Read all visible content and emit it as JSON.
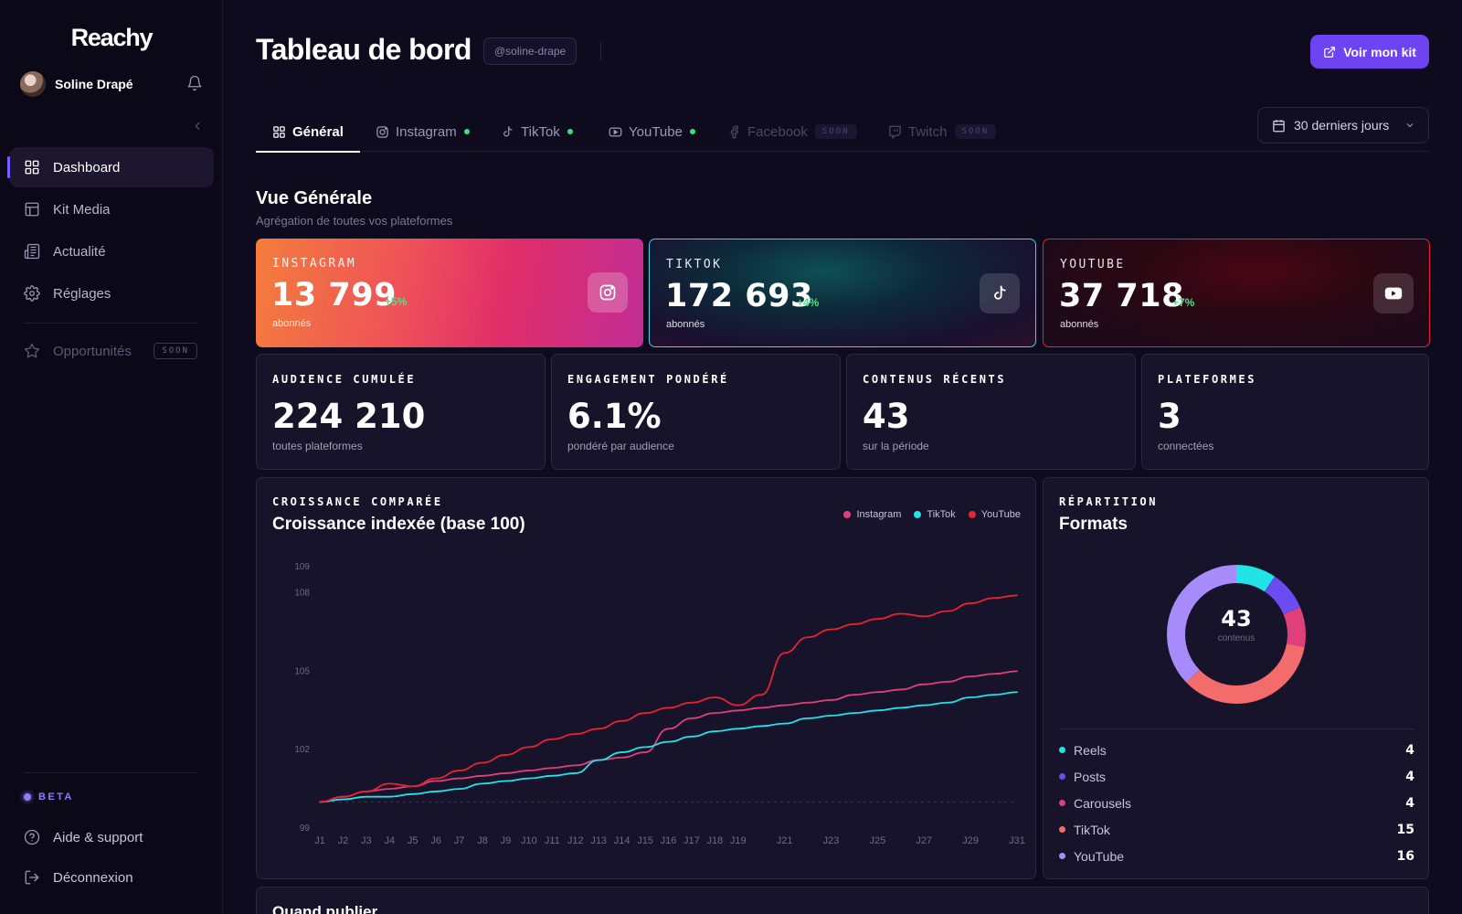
{
  "app": {
    "logo": "Reachy"
  },
  "user": {
    "name": "Soline Drapé",
    "handle": "@soline-drape"
  },
  "sidebar": {
    "items": [
      {
        "label": "Dashboard",
        "icon": "grid-icon",
        "active": true
      },
      {
        "label": "Kit Media",
        "icon": "layout-icon"
      },
      {
        "label": "Actualité",
        "icon": "newspaper-icon"
      },
      {
        "label": "Réglages",
        "icon": "gear-icon"
      }
    ],
    "opportunities": {
      "label": "Opportunités",
      "badge": "SOON"
    },
    "beta_label": "BETA",
    "help": "Aide & support",
    "logout": "Déconnexion"
  },
  "header": {
    "title": "Tableau de bord",
    "kit_button": "Voir mon kit"
  },
  "tabs": [
    {
      "label": "Général",
      "icon": "grid-icon",
      "active": true
    },
    {
      "label": "Instagram",
      "icon": "instagram-icon",
      "status": "connected"
    },
    {
      "label": "TikTok",
      "icon": "tiktok-icon",
      "status": "connected"
    },
    {
      "label": "YouTube",
      "icon": "youtube-icon",
      "status": "connected"
    },
    {
      "label": "Facebook",
      "icon": "facebook-icon",
      "badge": "SOON"
    },
    {
      "label": "Twitch",
      "icon": "twitch-icon",
      "badge": "SOON"
    }
  ],
  "range": {
    "label": "30 derniers jours"
  },
  "overview": {
    "title": "Vue Générale",
    "subtitle": "Agrégation de toutes vos plateformes"
  },
  "platforms": [
    {
      "label": "INSTAGRAM",
      "value": "13 799",
      "delta": "+5%",
      "unit": "abonnés",
      "icon": "instagram-icon"
    },
    {
      "label": "TIKTOK",
      "value": "172 693",
      "delta": "+4%",
      "unit": "abonnés",
      "icon": "tiktok-icon"
    },
    {
      "label": "YOUTUBE",
      "value": "37 718",
      "delta": "+7%",
      "unit": "abonnés",
      "icon": "youtube-icon"
    }
  ],
  "stats": [
    {
      "label": "AUDIENCE CUMULÉE",
      "value": "224 210",
      "sub": "toutes plateformes"
    },
    {
      "label": "ENGAGEMENT PONDÉRÉ",
      "value": "6.1%",
      "sub": "pondéré par audience"
    },
    {
      "label": "CONTENUS RÉCENTS",
      "value": "43",
      "sub": "sur la période"
    },
    {
      "label": "PLATEFORMES",
      "value": "3",
      "sub": "connectées"
    }
  ],
  "growth": {
    "label": "CROISSANCE COMPARÉE",
    "title": "Croissance indexée (base 100)"
  },
  "formats": {
    "label": "RÉPARTITION",
    "title": "Formats",
    "total": "43",
    "total_label": "contenus",
    "items": [
      {
        "label": "Reels",
        "value": "4",
        "color": "#22e3e6"
      },
      {
        "label": "Posts",
        "value": "4",
        "color": "#6a4cf0"
      },
      {
        "label": "Carousels",
        "value": "4",
        "color": "#e0407a"
      },
      {
        "label": "TikTok",
        "value": "15",
        "color": "#f46b6b"
      },
      {
        "label": "YouTube",
        "value": "16",
        "color": "#a78bfa"
      }
    ]
  },
  "next_section": {
    "title": "Quand publier"
  },
  "chart_data": {
    "type": "line",
    "x": [
      "J1",
      "J2",
      "J3",
      "J4",
      "J5",
      "J6",
      "J7",
      "J8",
      "J9",
      "J10",
      "J11",
      "J12",
      "J13",
      "J14",
      "J15",
      "J16",
      "J17",
      "J18",
      "J19",
      "J20",
      "J21",
      "J22",
      "J23",
      "J24",
      "J25",
      "J26",
      "J27",
      "J28",
      "J29",
      "J30",
      "J31"
    ],
    "x_tick_labels": [
      "J1",
      "J2",
      "J3",
      "J4",
      "J5",
      "J6",
      "J7",
      "J8",
      "J9",
      "J10",
      "J11",
      "J12",
      "J13",
      "J14",
      "J15",
      "J16",
      "J17",
      "J18",
      "J19",
      "J21",
      "J23",
      "J25",
      "J27",
      "J29",
      "J31"
    ],
    "y_tick_labels": [
      "99",
      "102",
      "105",
      "108",
      "109"
    ],
    "ylim": [
      99,
      109
    ],
    "baseline": 100,
    "series": [
      {
        "name": "Instagram",
        "color": "#e0407a",
        "values": [
          100,
          100.2,
          100.4,
          100.5,
          100.6,
          100.8,
          100.9,
          101,
          101.1,
          101.2,
          101.3,
          101.4,
          101.6,
          101.7,
          101.9,
          102.8,
          103.2,
          103.4,
          103.5,
          103.6,
          103.7,
          103.8,
          103.9,
          104.1,
          104.2,
          104.3,
          104.5,
          104.6,
          104.8,
          104.9,
          105
        ]
      },
      {
        "name": "TikTok",
        "color": "#22e3e6",
        "values": [
          100,
          100.1,
          100.2,
          100.2,
          100.3,
          100.4,
          100.5,
          100.7,
          100.8,
          100.9,
          101,
          101.1,
          101.6,
          101.9,
          102.1,
          102.3,
          102.5,
          102.7,
          102.8,
          102.9,
          103,
          103.2,
          103.3,
          103.4,
          103.5,
          103.6,
          103.7,
          103.8,
          104,
          104.1,
          104.2
        ]
      },
      {
        "name": "YouTube",
        "color": "#e4242f",
        "values": [
          100,
          100.2,
          100.4,
          100.7,
          100.6,
          100.9,
          101.2,
          101.5,
          101.8,
          102.1,
          102.4,
          102.6,
          102.8,
          103.1,
          103.4,
          103.6,
          103.8,
          104,
          103.7,
          104.1,
          105.7,
          106.3,
          106.6,
          106.8,
          107,
          107.2,
          107.1,
          107.3,
          107.6,
          107.8,
          107.9
        ]
      }
    ]
  }
}
